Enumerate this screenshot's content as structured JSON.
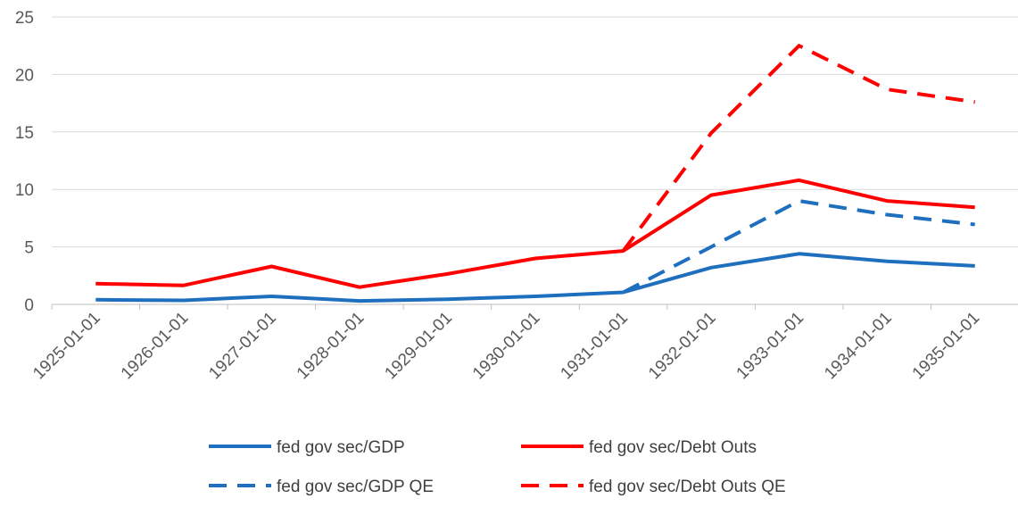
{
  "chart_data": {
    "type": "line",
    "categories": [
      "1925-01-01",
      "1926-01-01",
      "1927-01-01",
      "1928-01-01",
      "1929-01-01",
      "1930-01-01",
      "1931-01-01",
      "1932-01-01",
      "1933-01-01",
      "1934-01-01",
      "1935-01-01"
    ],
    "ylim": [
      0,
      25
    ],
    "yticks": [
      0,
      5,
      10,
      15,
      20,
      25
    ],
    "grid": true,
    "legend_position": "bottom",
    "series": [
      {
        "name": "fed gov sec/GDP",
        "color": "#1F6FBF",
        "dash": "solid",
        "values": [
          0.4,
          0.35,
          0.7,
          0.3,
          0.45,
          0.7,
          1.05,
          3.2,
          4.4,
          3.75,
          3.35
        ]
      },
      {
        "name": "fed gov sec/Debt Outs",
        "color": "#FF0000",
        "dash": "solid",
        "values": [
          1.8,
          1.65,
          3.3,
          1.5,
          2.65,
          4.0,
          4.65,
          9.5,
          10.8,
          9.0,
          8.45
        ]
      },
      {
        "name": "fed gov sec/GDP QE",
        "color": "#1F6FBF",
        "dash": "dashed",
        "values": [
          null,
          null,
          null,
          null,
          null,
          null,
          1.05,
          5.0,
          9.0,
          7.8,
          6.95
        ]
      },
      {
        "name": "fed gov sec/Debt Outs QE",
        "color": "#FF0000",
        "dash": "dashed",
        "values": [
          null,
          null,
          null,
          null,
          null,
          null,
          4.65,
          14.9,
          22.5,
          18.7,
          17.6
        ]
      }
    ]
  }
}
